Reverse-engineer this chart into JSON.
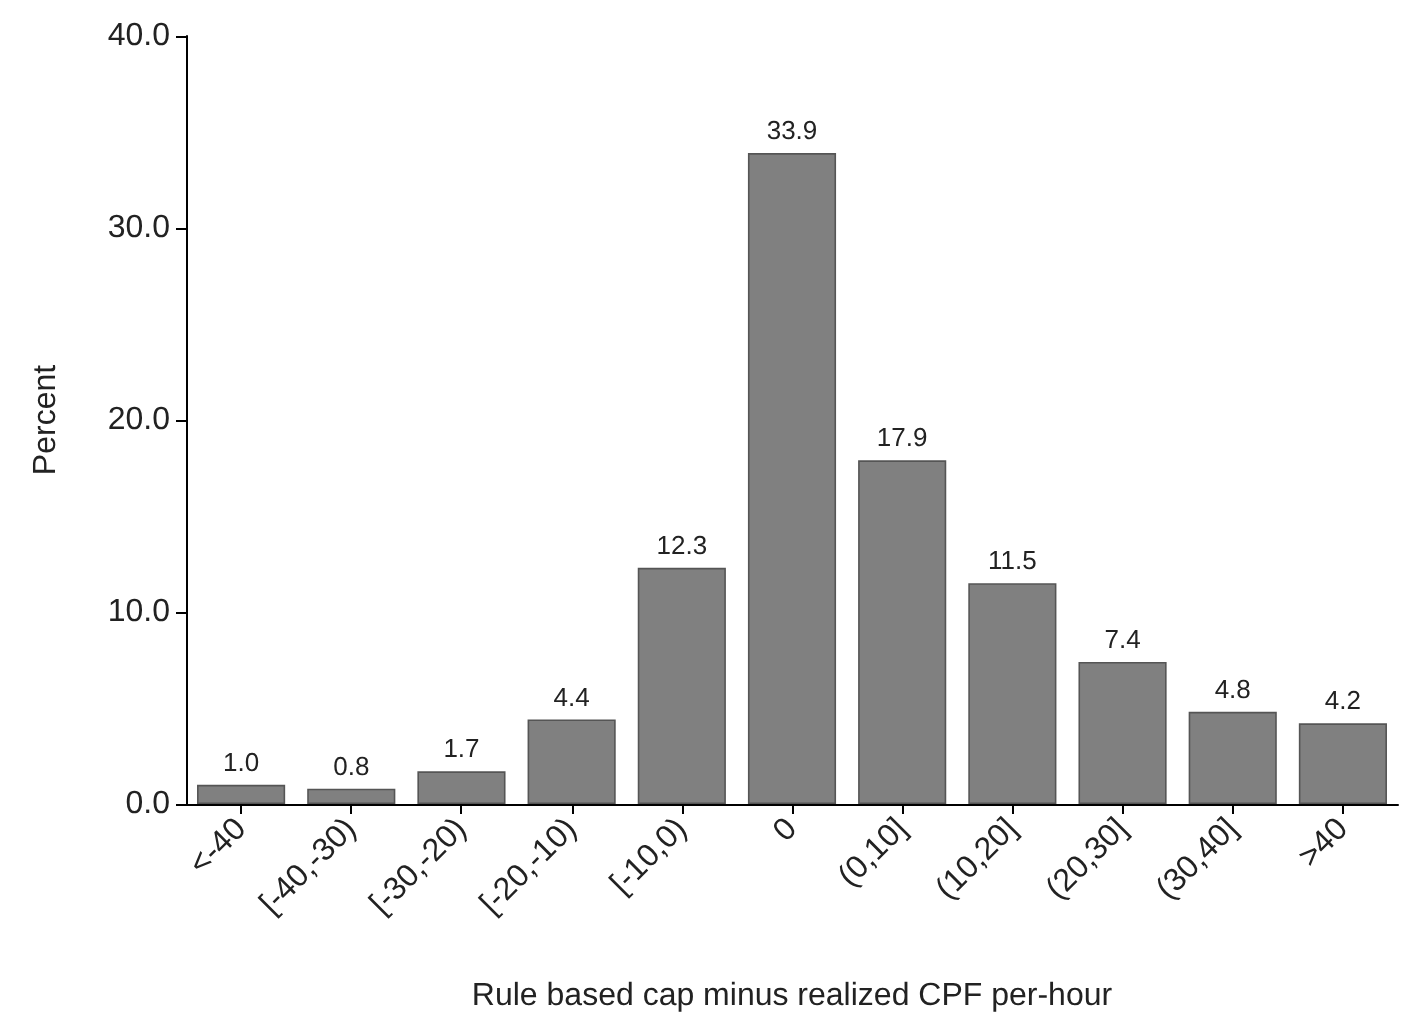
{
  "chart_data": {
    "type": "bar",
    "xlabel": "Rule based cap minus realized CPF per-hour",
    "ylabel": "Percent",
    "categories": [
      "<-40",
      "[-40,-30)",
      "[-30,-20)",
      "[-20,-10)",
      "[-10,0)",
      "0",
      "(0,10]",
      "(10,20]",
      "(20,30]",
      "(30,40]",
      ">40"
    ],
    "values": [
      1.0,
      0.8,
      1.7,
      4.4,
      12.3,
      33.9,
      17.9,
      11.5,
      7.4,
      4.8,
      4.2
    ],
    "value_labels": [
      "1.0",
      "0.8",
      "1.7",
      "4.4",
      "12.3",
      "33.9",
      "17.9",
      "11.5",
      "7.4",
      "4.8",
      "4.2"
    ],
    "color": "#808080",
    "ylim": [
      0,
      40
    ],
    "yticks": [
      {
        "value": 0,
        "label": "0.0"
      },
      {
        "value": 10,
        "label": "10.0"
      },
      {
        "value": 20,
        "label": "20.0"
      },
      {
        "value": 30,
        "label": "30.0"
      },
      {
        "value": 40,
        "label": "40.0"
      }
    ],
    "grid": false
  }
}
